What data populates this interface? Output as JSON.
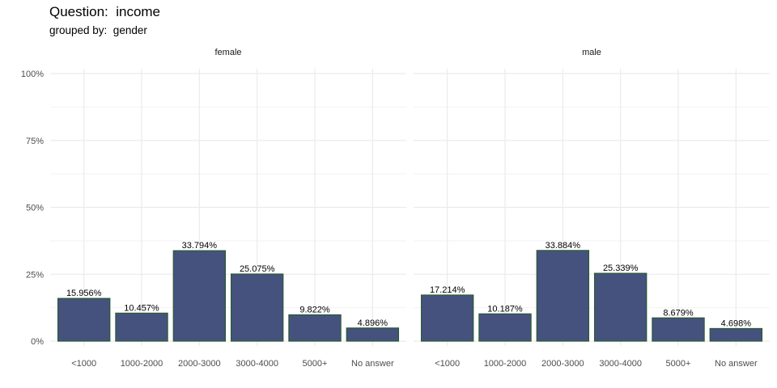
{
  "chart_data": {
    "type": "bar",
    "title": "Question:  income",
    "subtitle": "grouped by:  gender",
    "categories": [
      "<1000",
      "1000-2000",
      "2000-3000",
      "3000-4000",
      "5000+",
      "No answer"
    ],
    "yticks": [
      "0%",
      "25%",
      "50%",
      "75%",
      "100%"
    ],
    "ylim": [
      0,
      100
    ],
    "grid": true,
    "fill_color": "#45527e",
    "edge_color": "#2a5a35",
    "panels": [
      {
        "name": "female",
        "values": [
          15.956,
          10.457,
          33.794,
          25.075,
          9.822,
          4.896
        ],
        "labels": [
          "15.956%",
          "10.457%",
          "33.794%",
          "25.075%",
          "9.822%",
          "4.896%"
        ]
      },
      {
        "name": "male",
        "values": [
          17.214,
          10.187,
          33.884,
          25.339,
          8.679,
          4.698
        ],
        "labels": [
          "17.214%",
          "10.187%",
          "33.884%",
          "25.339%",
          "8.679%",
          "4.698%"
        ]
      }
    ]
  }
}
